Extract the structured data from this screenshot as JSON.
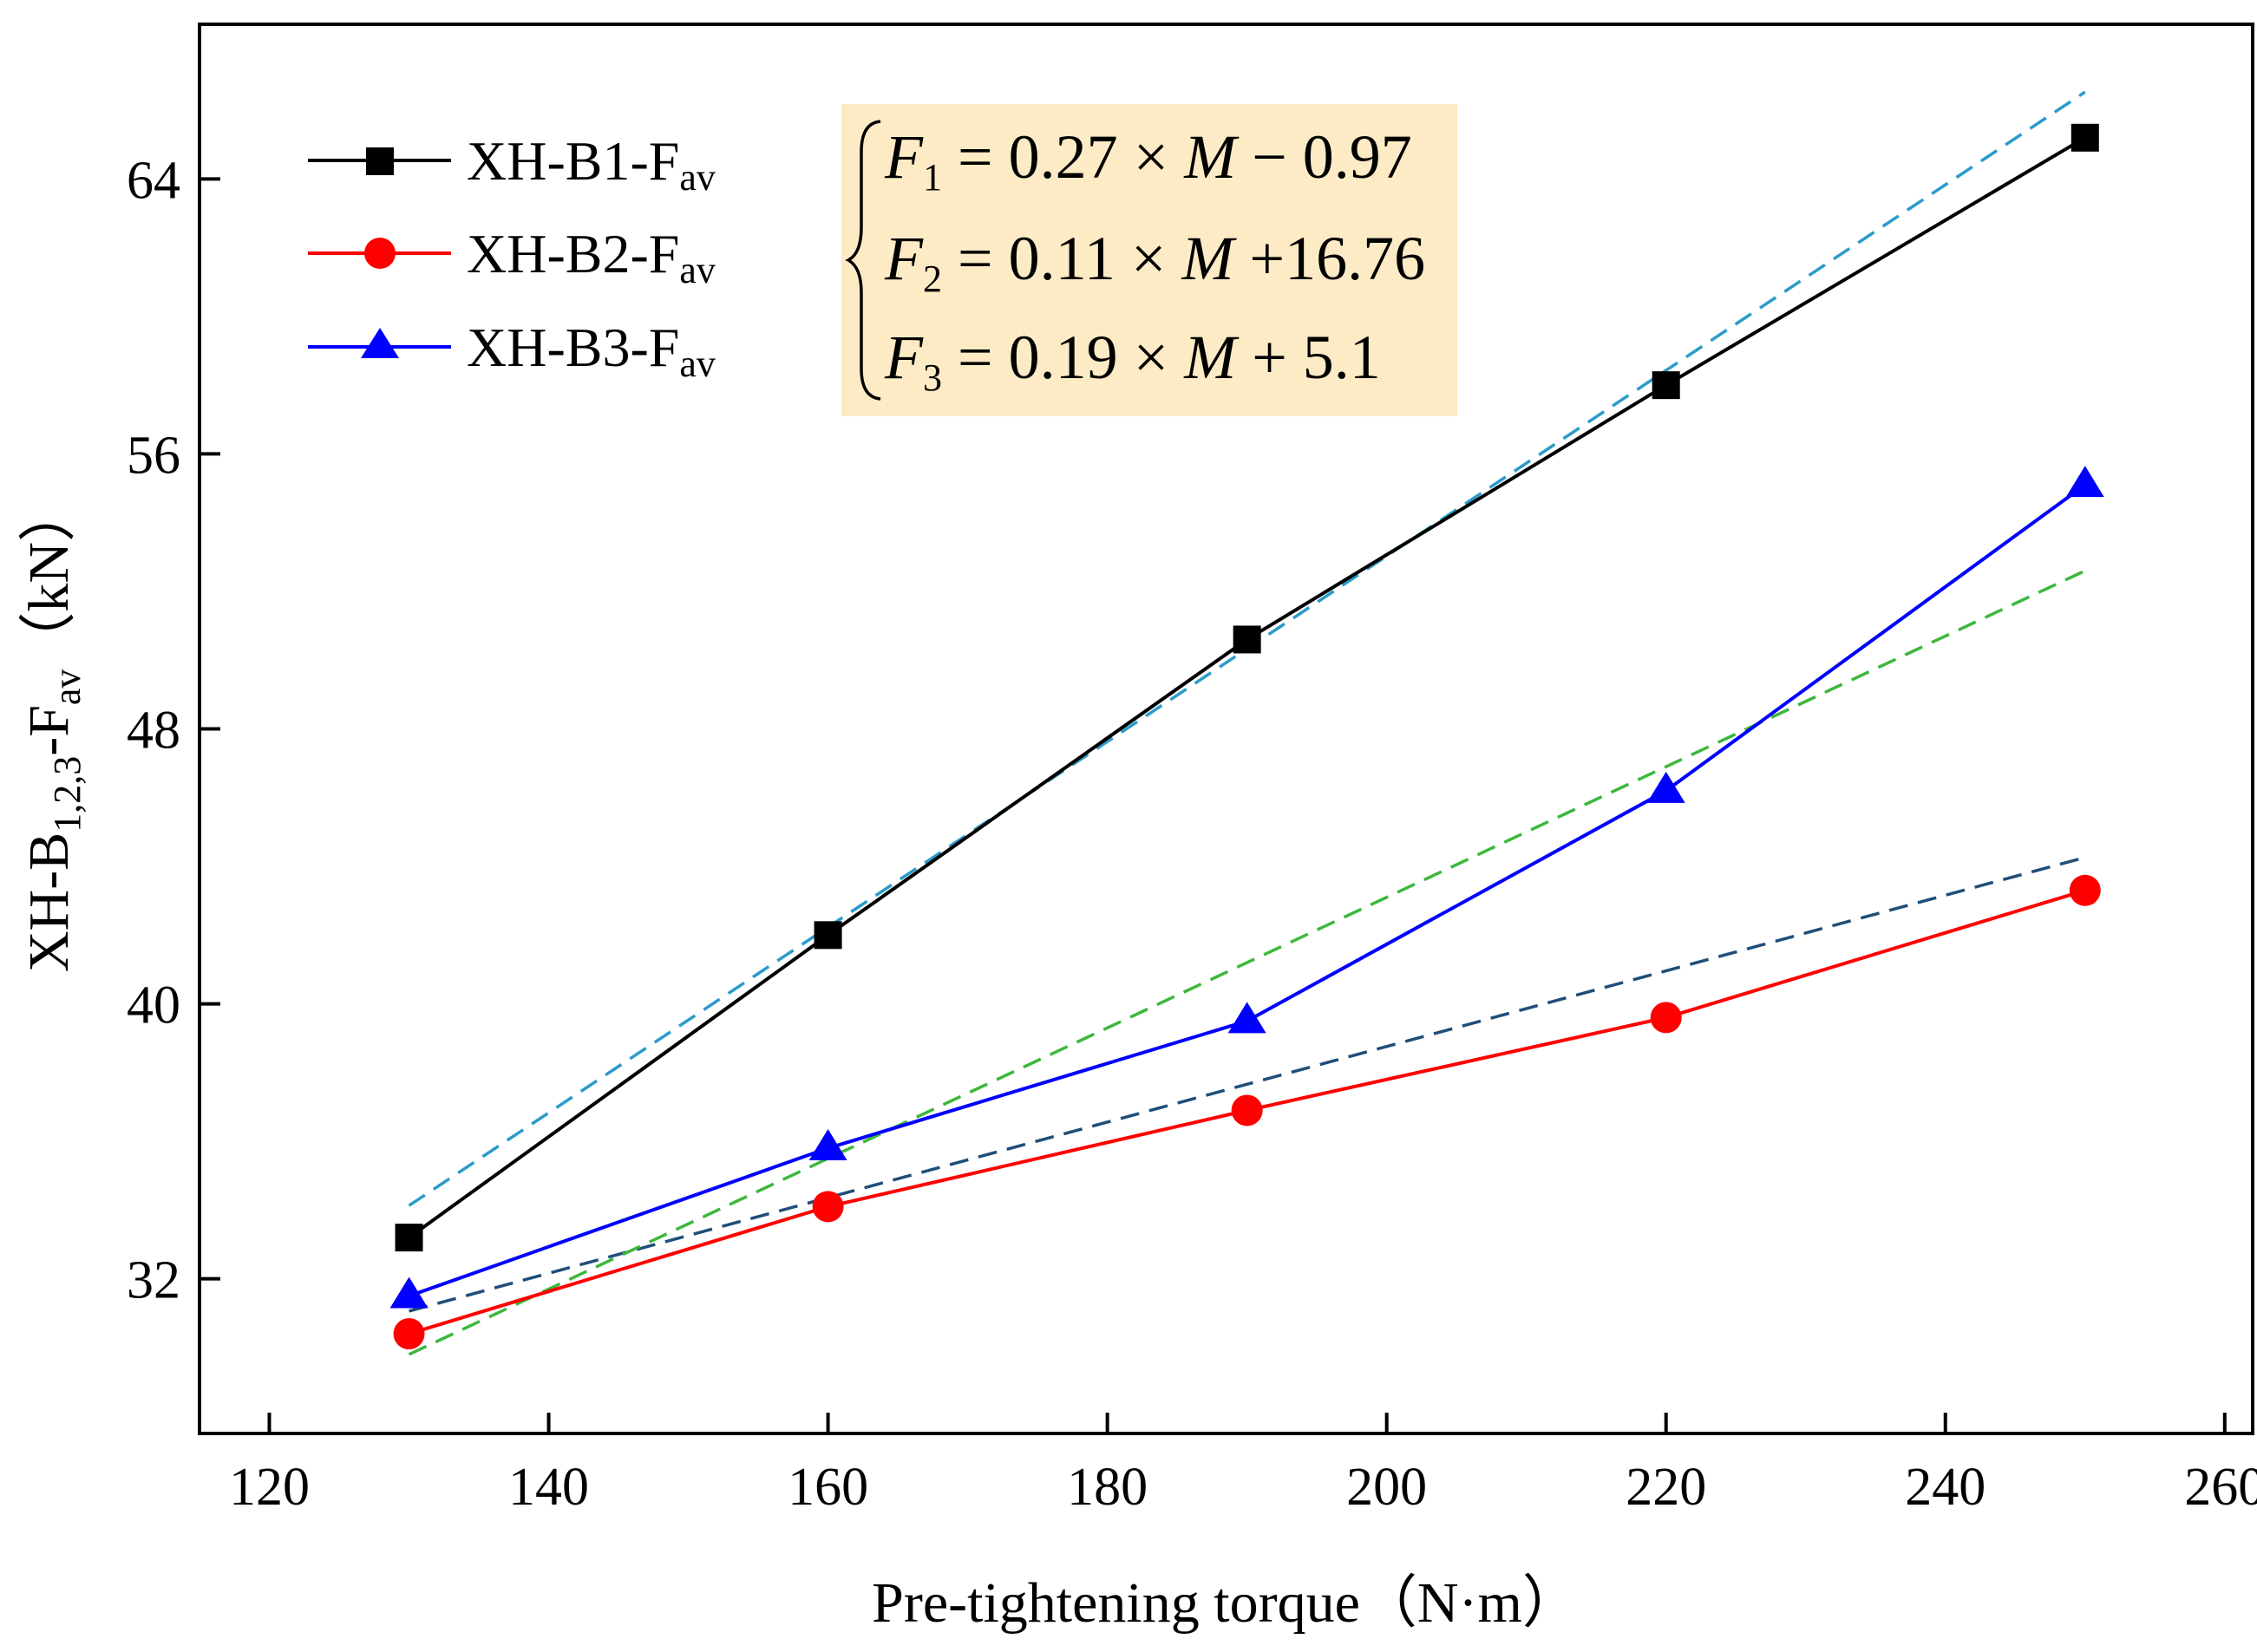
{
  "chart_data": {
    "type": "line",
    "title": "",
    "xlabel": "Pre-tightening torque（N·m）",
    "ylabel_parts": {
      "prefix": "XH-B",
      "sub": "1,2,3",
      "mid": "-F",
      "sub2": "av",
      "suffix": "（kN）"
    },
    "xlim": [
      115,
      262
    ],
    "ylim": [
      27.5,
      68.5
    ],
    "xticks": [
      120,
      140,
      160,
      180,
      200,
      220,
      240,
      260
    ],
    "yticks": [
      32,
      40,
      48,
      56,
      64
    ],
    "x": [
      130,
      160,
      190,
      220,
      250
    ],
    "series": [
      {
        "name": "XH-B1-F",
        "sub": "av",
        "marker": "square",
        "color": "#000000",
        "values": [
          33.2,
          42.0,
          50.6,
          58.0,
          65.2
        ]
      },
      {
        "name": "XH-B2-F",
        "sub": "av",
        "marker": "circle",
        "color": "#ff0000",
        "values": [
          30.4,
          34.1,
          36.9,
          39.6,
          43.3
        ]
      },
      {
        "name": "XH-B3-F",
        "sub": "av",
        "marker": "triangle",
        "color": "#0000ff",
        "values": [
          31.5,
          35.8,
          39.5,
          46.2,
          55.1
        ]
      }
    ],
    "fits": [
      {
        "label": "F1",
        "slope": 0.27,
        "intercept": -0.97,
        "color": "#2a9bc9"
      },
      {
        "label": "F2",
        "slope": 0.11,
        "intercept": 16.76,
        "color": "#1f4e79"
      },
      {
        "label": "F3",
        "slope": 0.19,
        "intercept": 5.1,
        "color": "#3cb83c"
      }
    ],
    "fit_x_range": [
      130,
      250
    ],
    "legend_position": "top-left",
    "equations": [
      {
        "var": "F",
        "sub": "1",
        "rhs_a": " = 0.27 × ",
        "m": "M",
        "rhs_b": " − 0.97"
      },
      {
        "var": "F",
        "sub": "2",
        "rhs_a": " = 0.11 × ",
        "m": "M",
        "rhs_b": " +16.76"
      },
      {
        "var": "F",
        "sub": "3",
        "rhs_a": " = 0.19 × ",
        "m": "M",
        "rhs_b": " + 5.1"
      }
    ],
    "equation_box_color": "#fcebc4"
  }
}
